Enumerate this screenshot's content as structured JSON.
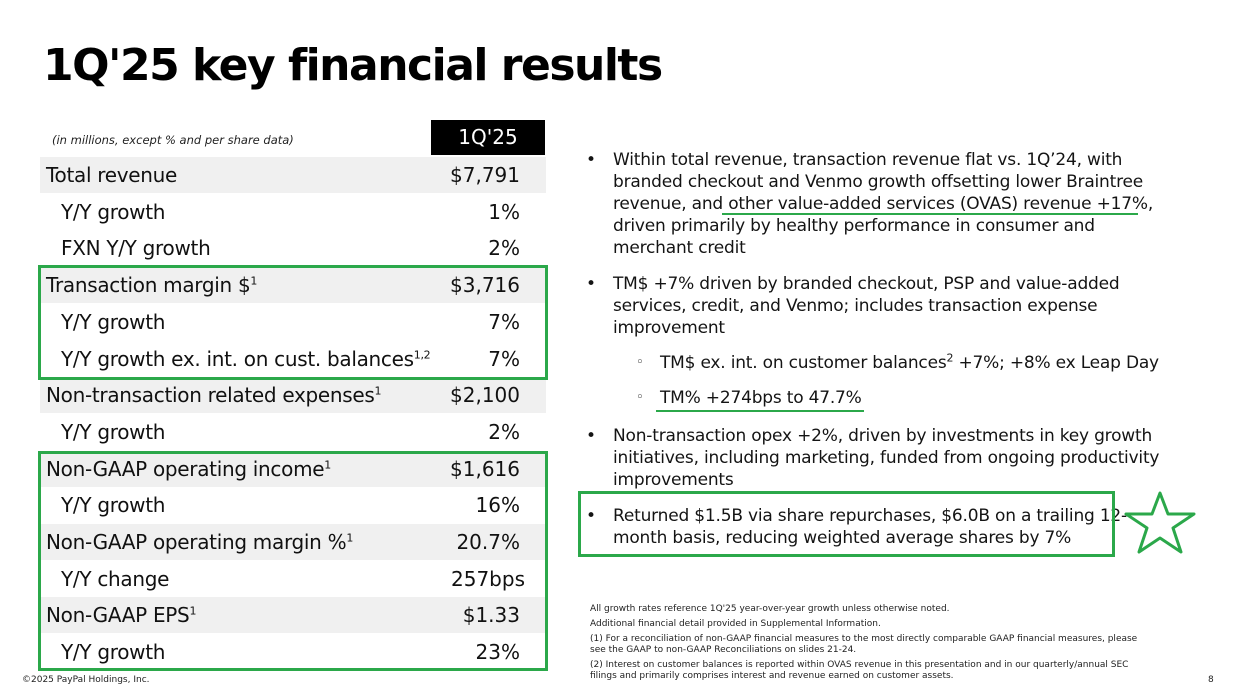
{
  "title": "1Q'25 key financial results",
  "table": {
    "subheader": "(in millions, except % and per share data)",
    "column_header": "1Q'25",
    "rows": [
      {
        "label": "Total revenue",
        "sup": "",
        "value": "$7,791"
      },
      {
        "label": "Y/Y growth",
        "sup": "",
        "value": "1%"
      },
      {
        "label": "FXN Y/Y growth",
        "sup": "",
        "value": "2%"
      },
      {
        "label": "Transaction margin $",
        "sup": "1",
        "value": "$3,716"
      },
      {
        "label": "Y/Y growth",
        "sup": "",
        "value": "7%"
      },
      {
        "label": "Y/Y growth ex. int. on cust. balances",
        "sup": "1,2",
        "value": "7%"
      },
      {
        "label": "Non-transaction related expenses",
        "sup": "1",
        "value": "$2,100"
      },
      {
        "label": "Y/Y growth",
        "sup": "",
        "value": "2%"
      },
      {
        "label": "Non-GAAP operating income",
        "sup": "1",
        "value": "$1,616"
      },
      {
        "label": "Y/Y growth",
        "sup": "",
        "value": "16%"
      },
      {
        "label": "Non-GAAP operating margin %",
        "sup": "1",
        "value": "20.7%"
      },
      {
        "label": "Y/Y change",
        "sup": "",
        "value": "257bps"
      },
      {
        "label": "Non-GAAP EPS",
        "sup": "1",
        "value": "$1.33"
      },
      {
        "label": "Y/Y growth",
        "sup": "",
        "value": "23%"
      }
    ]
  },
  "bullets": {
    "b1": [
      "Within total revenue, transaction revenue flat vs. 1Q’24, with",
      "branded checkout and Venmo growth offsetting lower Braintree",
      "revenue, and other value-added services (OVAS) revenue +17%,",
      "driven primarily by healthy performance in consumer and",
      "merchant credit"
    ],
    "b2": [
      "TM$ +7% driven by branded checkout, PSP and value-added",
      "services, credit, and Venmo; includes transaction expense",
      "improvement"
    ],
    "sb1_pre": "TM$ ex. int. on customer balances",
    "sb1_sup": "2",
    "sb1_post": " +7%; +8% ex Leap Day",
    "sb2": "TM% +274bps to 47.7%",
    "b3": [
      "Non-transaction opex +2%, driven by investments in key growth",
      "initiatives, including marketing, funded from ongoing productivity",
      "improvements"
    ],
    "b4": [
      "Returned $1.5B via share repurchases, $6.0B on a trailing 12-",
      "month basis, reducing weighted average shares by 7%"
    ],
    "bullet_symbol": "•",
    "sub_bullet_symbol": "◦"
  },
  "notes": [
    "All growth rates reference 1Q'25 year-over-year growth unless otherwise noted.",
    "Additional financial detail provided in Supplemental Information.",
    "(1) For a reconciliation of non-GAAP financial measures to the most directly comparable GAAP financial measures, please",
    "see the GAAP to non-GAAP Reconciliations on slides 21-24.",
    "(2) Interest on customer balances is reported within OVAS revenue in this presentation and in our quarterly/annual SEC",
    "filings and primarily comprises interest and revenue earned on customer assets."
  ],
  "footer": "©2025 PayPal Holdings, Inc.",
  "page_number": "8",
  "colors": {
    "highlight": "#2ba84a",
    "header_bg": "#000000",
    "row_shade": "#f0f0f0"
  },
  "icons": {
    "star": "star-outline-icon"
  }
}
